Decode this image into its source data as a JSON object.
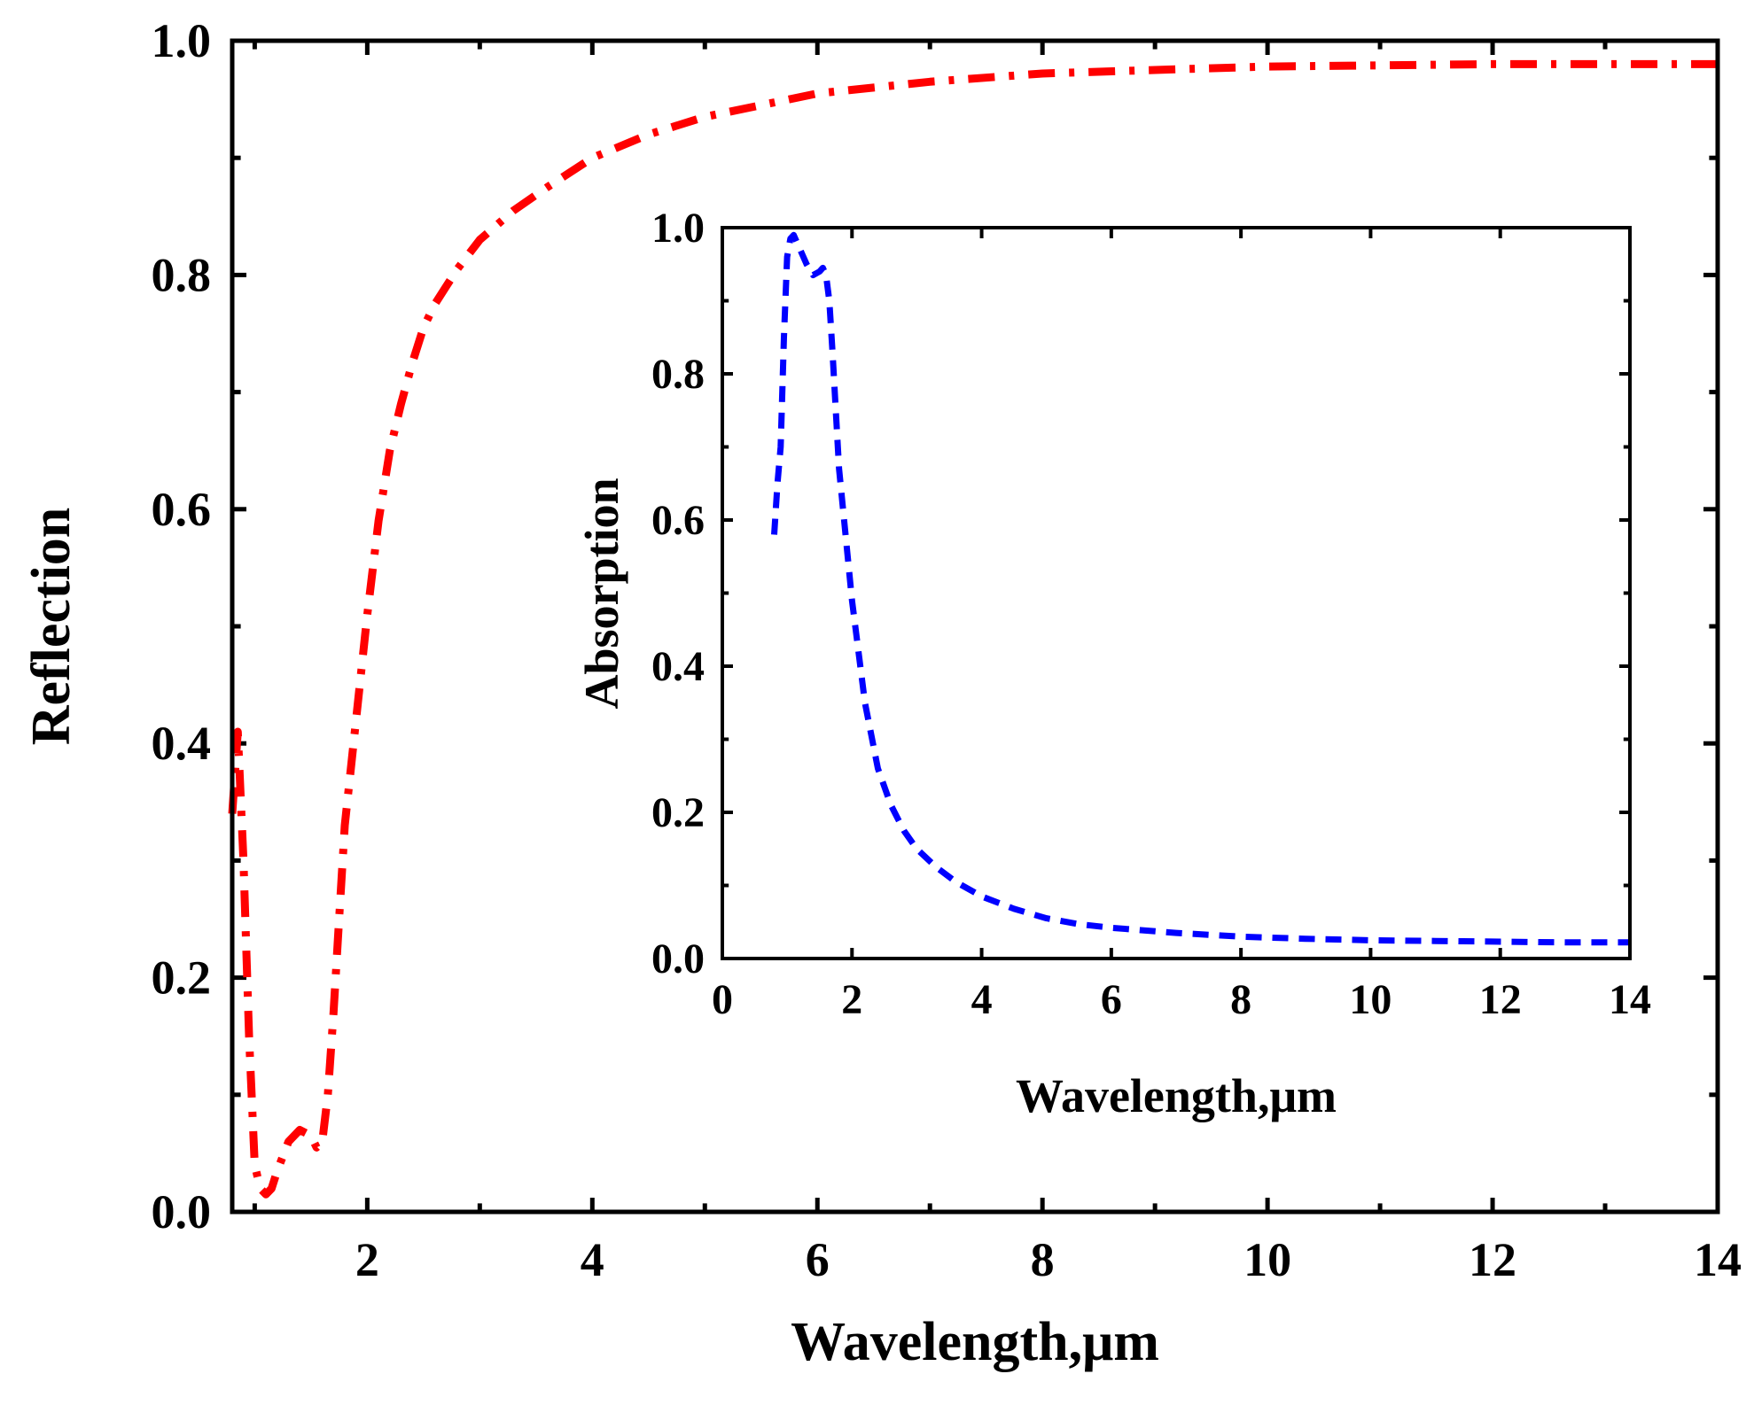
{
  "chart_data": [
    {
      "id": "main",
      "type": "line",
      "title": "",
      "xlabel": "Wavelength,μm",
      "ylabel": "Reflection",
      "xlim": [
        0.8,
        14
      ],
      "ylim": [
        0,
        1
      ],
      "xticks": [
        2,
        4,
        6,
        8,
        10,
        12,
        14
      ],
      "yticks": [
        0.0,
        0.2,
        0.4,
        0.6,
        0.8,
        1.0
      ],
      "xtick_labels": [
        "2",
        "4",
        "6",
        "8",
        "10",
        "12",
        "14"
      ],
      "ytick_labels": [
        "0.0",
        "0.2",
        "0.4",
        "0.6",
        "0.8",
        "1.0"
      ],
      "grid": false,
      "series": [
        {
          "name": "Reflection",
          "color": "#ff0000",
          "style": "dash-dot",
          "x": [
            0.8,
            0.85,
            0.9,
            0.95,
            1.0,
            1.05,
            1.1,
            1.15,
            1.2,
            1.3,
            1.4,
            1.5,
            1.55,
            1.6,
            1.65,
            1.7,
            1.75,
            1.8,
            1.9,
            2.0,
            2.1,
            2.2,
            2.3,
            2.4,
            2.5,
            2.6,
            2.8,
            3.0,
            3.3,
            3.6,
            4.0,
            4.5,
            5.0,
            5.5,
            6.0,
            7.0,
            8.0,
            9.0,
            10.0,
            11.0,
            12.0,
            13.0,
            14.0
          ],
          "values": [
            0.34,
            0.41,
            0.3,
            0.15,
            0.04,
            0.02,
            0.015,
            0.02,
            0.035,
            0.06,
            0.07,
            0.065,
            0.055,
            0.06,
            0.1,
            0.17,
            0.25,
            0.33,
            0.42,
            0.51,
            0.59,
            0.65,
            0.69,
            0.725,
            0.755,
            0.775,
            0.805,
            0.83,
            0.855,
            0.875,
            0.9,
            0.92,
            0.935,
            0.945,
            0.955,
            0.965,
            0.972,
            0.975,
            0.978,
            0.979,
            0.98,
            0.98,
            0.98
          ]
        }
      ]
    },
    {
      "id": "inset",
      "type": "line",
      "title": "",
      "xlabel": "Wavelength,μm",
      "ylabel": "Absorption",
      "xlim": [
        0,
        14
      ],
      "ylim": [
        0,
        1
      ],
      "xticks": [
        0,
        2,
        4,
        6,
        8,
        10,
        12,
        14
      ],
      "yticks": [
        0.0,
        0.2,
        0.4,
        0.6,
        0.8,
        1.0
      ],
      "xtick_labels": [
        "0",
        "2",
        "4",
        "6",
        "8",
        "10",
        "12",
        "14"
      ],
      "ytick_labels": [
        "0.0",
        "0.2",
        "0.4",
        "0.6",
        "0.8",
        "1.0"
      ],
      "grid": false,
      "series": [
        {
          "name": "Absorption",
          "color": "#0000ff",
          "style": "dashed",
          "x": [
            0.8,
            0.85,
            0.9,
            0.95,
            1.0,
            1.05,
            1.1,
            1.15,
            1.2,
            1.3,
            1.4,
            1.5,
            1.55,
            1.6,
            1.65,
            1.7,
            1.75,
            1.8,
            1.9,
            2.0,
            2.2,
            2.4,
            2.6,
            2.8,
            3.0,
            3.3,
            3.6,
            4.0,
            4.5,
            5.0,
            5.5,
            6.0,
            7.0,
            8.0,
            9.0,
            10.0,
            11.0,
            12.0,
            13.0,
            14.0
          ],
          "values": [
            0.58,
            0.65,
            0.7,
            0.85,
            0.96,
            0.985,
            0.99,
            0.98,
            0.97,
            0.95,
            0.935,
            0.94,
            0.945,
            0.935,
            0.9,
            0.83,
            0.75,
            0.67,
            0.58,
            0.49,
            0.35,
            0.26,
            0.21,
            0.175,
            0.15,
            0.125,
            0.105,
            0.085,
            0.068,
            0.055,
            0.047,
            0.042,
            0.035,
            0.03,
            0.027,
            0.025,
            0.024,
            0.023,
            0.022,
            0.022
          ]
        }
      ]
    }
  ]
}
